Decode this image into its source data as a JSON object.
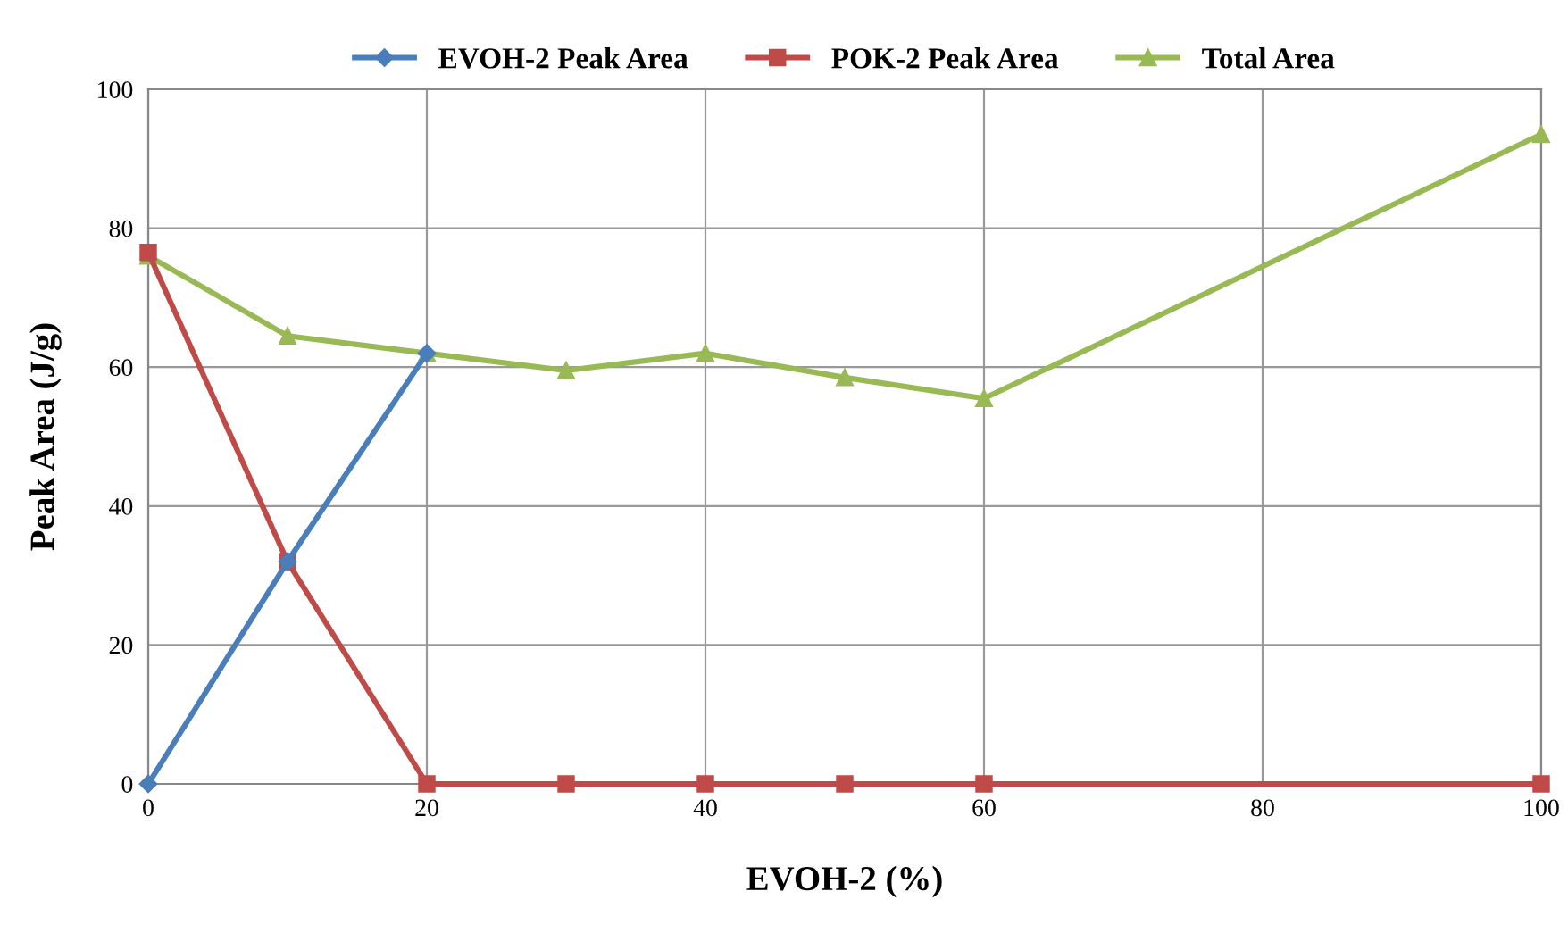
{
  "chart_data": {
    "type": "line",
    "xlabel": "EVOH-2 (%)",
    "ylabel": "Peak Area (J/g)",
    "xlim": [
      0,
      100
    ],
    "xticks": [
      0,
      20,
      40,
      60,
      80,
      100
    ],
    "ylim": [
      0,
      100
    ],
    "yticks": [
      0,
      20,
      40,
      60,
      80,
      100
    ],
    "grid": true,
    "legend": "top",
    "line_style": "solid",
    "series": [
      {
        "name": "EVOH-2 Peak Area",
        "color": "#4a7ebb",
        "marker": "diamond",
        "x": [
          0,
          10,
          20
        ],
        "values": [
          0,
          32,
          62
        ]
      },
      {
        "name": "POK-2 Peak Area",
        "color": "#be4b48",
        "marker": "square",
        "x": [
          0,
          10,
          20,
          30,
          40,
          50,
          60,
          100
        ],
        "values": [
          76.5,
          32,
          0,
          0,
          0,
          0,
          0,
          0
        ]
      },
      {
        "name": "Total Area",
        "color": "#98b954",
        "marker": "triangle",
        "x": [
          0,
          10,
          20,
          30,
          40,
          50,
          60,
          100
        ],
        "values": [
          76,
          64.5,
          62,
          59.5,
          62,
          58.5,
          55.5,
          93.5
        ]
      }
    ]
  }
}
